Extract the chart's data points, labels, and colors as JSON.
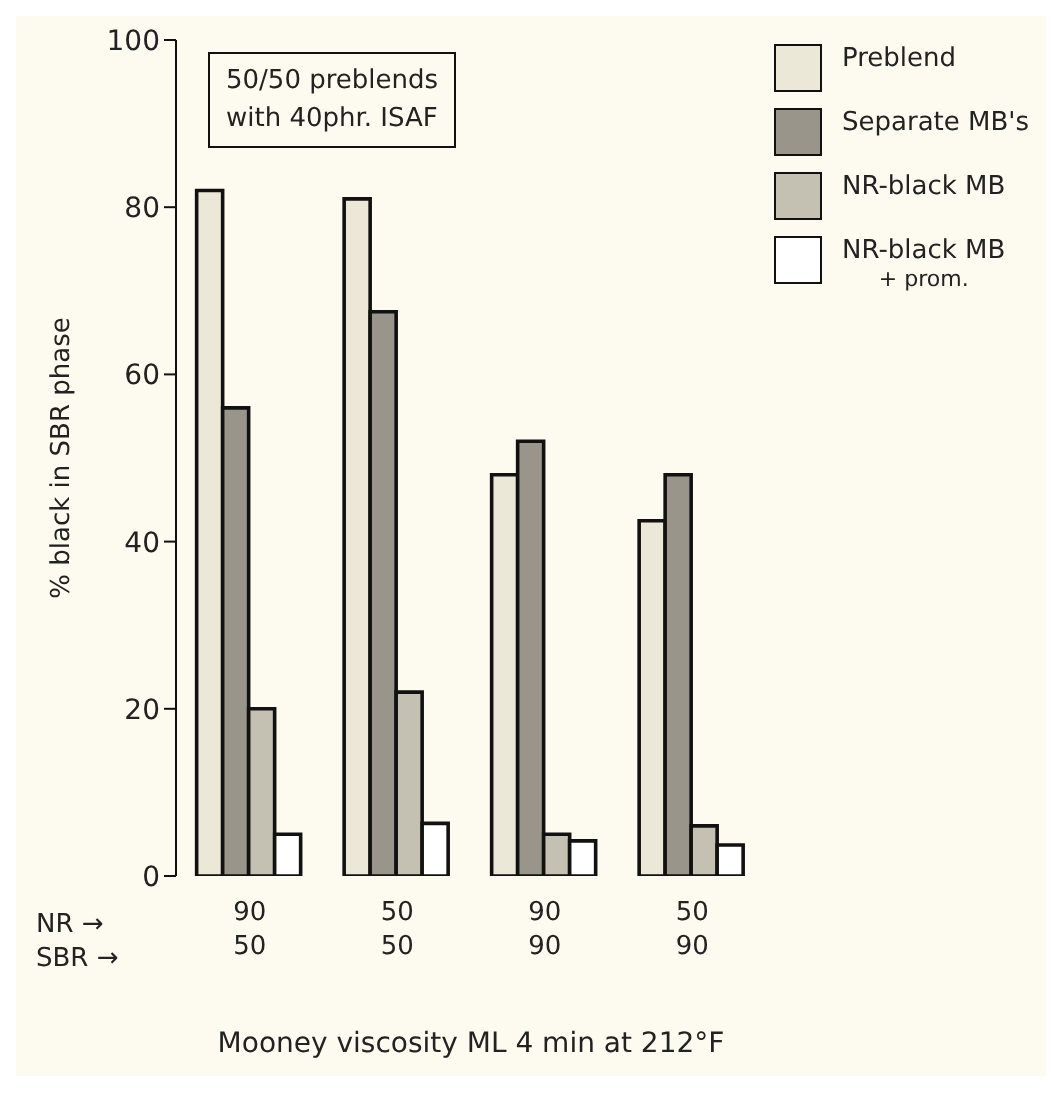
{
  "chart_data": {
    "type": "bar",
    "xlabel": "Mooney viscosity ML 4 min at 212°F",
    "ylabel": "% black in SBR phase",
    "categories": [
      "90\n50",
      "50\n50",
      "90\n90",
      "50\n90"
    ],
    "series": [
      {
        "name": "Preblend",
        "color": "#ece8d8",
        "values": [
          82,
          81,
          48,
          42.5
        ]
      },
      {
        "name": "Separate MB's",
        "color": "#9a958a",
        "values": [
          56,
          67.5,
          52,
          48
        ]
      },
      {
        "name": "NR-black MB",
        "color": "#c4c0b2",
        "values": [
          20,
          22,
          5,
          6
        ]
      },
      {
        "name": "NR-black MB\n+ prom.",
        "color": "#ffffff",
        "values": [
          5,
          6.3,
          4.2,
          3.7
        ]
      }
    ],
    "ylim": [
      0,
      100
    ],
    "yticks": [
      0,
      20,
      40,
      60,
      80,
      100
    ],
    "grid": false,
    "legend": "top right",
    "annotations": [
      "50/50 preblends\nwith 40phr. ISAF",
      "NR →",
      "SBR →"
    ]
  }
}
